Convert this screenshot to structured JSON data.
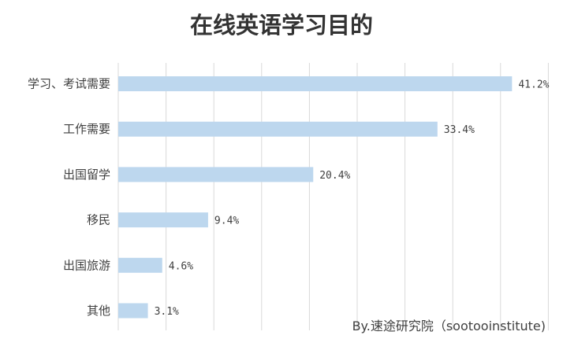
{
  "chart_data": {
    "type": "bar",
    "orientation": "horizontal",
    "title": "在线英语学习目的",
    "categories": [
      "学习、考试需要",
      "工作需要",
      "出国留学",
      "移民",
      "出国旅游",
      "其他"
    ],
    "values": [
      41.2,
      33.4,
      20.4,
      9.4,
      4.6,
      3.1
    ],
    "data_labels": [
      "41.2%",
      "33.4%",
      "20.4%",
      "9.4%",
      "4.6%",
      "3.1%"
    ],
    "xlim": [
      0,
      45
    ],
    "grid": true,
    "grid_step": 5,
    "legend": "none",
    "colors": {
      "bar": "#bdd7ee",
      "grid": "#d9d9d9"
    }
  },
  "credit": "By.速途研究院（sootooinstitute)"
}
